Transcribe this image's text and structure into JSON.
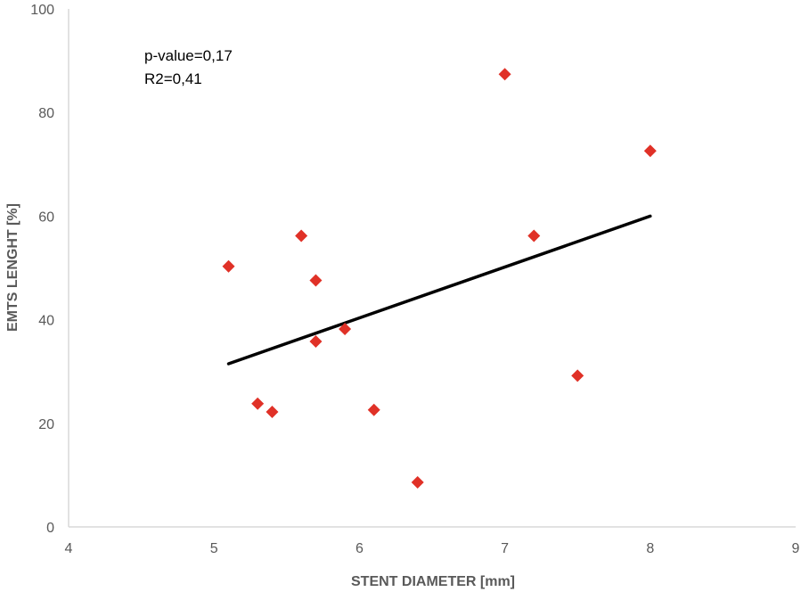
{
  "chart_data": {
    "type": "scatter",
    "title": "",
    "xlabel": "STENT DIAMETER [mm]",
    "ylabel": "EMTS LENGHT [%]",
    "xlim": [
      4,
      9
    ],
    "ylim": [
      0,
      100
    ],
    "xticks": [
      "4",
      "5",
      "6",
      "7",
      "8",
      "9"
    ],
    "yticks": [
      "0",
      "20",
      "40",
      "60",
      "80",
      "100"
    ],
    "grid": false,
    "legend": "none",
    "annotations": [
      "p-value=0,17",
      "R2=0,41"
    ],
    "series": [
      {
        "points": [
          {
            "x": 5.1,
            "y": 50.3
          },
          {
            "x": 5.3,
            "y": 23.8
          },
          {
            "x": 5.4,
            "y": 22.2
          },
          {
            "x": 5.6,
            "y": 56.2
          },
          {
            "x": 5.7,
            "y": 47.6
          },
          {
            "x": 5.7,
            "y": 35.8
          },
          {
            "x": 5.9,
            "y": 38.2
          },
          {
            "x": 6.1,
            "y": 22.6
          },
          {
            "x": 6.4,
            "y": 8.6
          },
          {
            "x": 7.0,
            "y": 87.4
          },
          {
            "x": 7.2,
            "y": 56.2
          },
          {
            "x": 7.5,
            "y": 29.2
          },
          {
            "x": 8.0,
            "y": 72.6
          }
        ],
        "color": "#e03127",
        "marker": "diamond"
      }
    ],
    "trendline": {
      "x": [
        5.1,
        8.0
      ],
      "y": [
        31.5,
        60.0
      ],
      "color": "#000000"
    }
  }
}
